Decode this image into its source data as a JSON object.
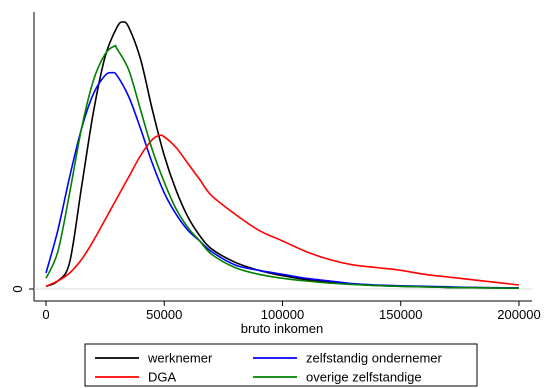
{
  "chart_data": {
    "type": "line",
    "xlabel": "bruto inkomen",
    "ylabel": "",
    "title": "",
    "xlim": [
      0,
      200000
    ],
    "ylim": [
      0,
      1
    ],
    "x_ticks": [
      0,
      50000,
      100000,
      150000,
      200000
    ],
    "x_tick_labels": [
      "0",
      "50000",
      "100000",
      "150000",
      "200000"
    ],
    "y_ticks": [
      0
    ],
    "y_tick_labels": [
      "0"
    ],
    "grid": false,
    "legend_position": "bottom",
    "series": [
      {
        "name": "werknemer",
        "color": "#000000",
        "x": [
          0,
          5000,
          10000,
          15000,
          20000,
          25000,
          30000,
          32500,
          35000,
          40000,
          45000,
          50000,
          55000,
          60000,
          65000,
          70000,
          80000,
          90000,
          100000,
          110000,
          120000,
          130000,
          140000,
          150000,
          160000,
          170000,
          180000,
          190000,
          200000
        ],
        "values": [
          0.01,
          0.03,
          0.1,
          0.38,
          0.66,
          0.87,
          0.98,
          1.0,
          0.98,
          0.86,
          0.67,
          0.5,
          0.37,
          0.27,
          0.2,
          0.15,
          0.1,
          0.07,
          0.05,
          0.035,
          0.025,
          0.018,
          0.013,
          0.01,
          0.008,
          0.006,
          0.005,
          0.004,
          0.003
        ]
      },
      {
        "name": "zelfstandig ondernemer",
        "color": "#0000ff",
        "x": [
          0,
          5000,
          10000,
          15000,
          20000,
          25000,
          28000,
          30000,
          35000,
          40000,
          45000,
          50000,
          55000,
          60000,
          65000,
          70000,
          80000,
          90000,
          100000,
          110000,
          120000,
          130000,
          140000,
          150000,
          160000,
          170000,
          180000,
          190000,
          200000
        ],
        "values": [
          0.06,
          0.22,
          0.42,
          0.6,
          0.73,
          0.8,
          0.81,
          0.8,
          0.72,
          0.6,
          0.47,
          0.36,
          0.28,
          0.22,
          0.18,
          0.14,
          0.09,
          0.07,
          0.055,
          0.04,
          0.03,
          0.02,
          0.015,
          0.012,
          0.01,
          0.008,
          0.006,
          0.005,
          0.004
        ]
      },
      {
        "name": "DGA",
        "color": "#ff0000",
        "x": [
          0,
          5000,
          10000,
          15000,
          20000,
          25000,
          30000,
          35000,
          40000,
          45000,
          48000,
          50000,
          55000,
          60000,
          65000,
          70000,
          80000,
          90000,
          100000,
          110000,
          120000,
          130000,
          140000,
          150000,
          160000,
          170000,
          180000,
          190000,
          200000
        ],
        "values": [
          0.01,
          0.03,
          0.06,
          0.11,
          0.18,
          0.26,
          0.34,
          0.42,
          0.5,
          0.56,
          0.575,
          0.57,
          0.53,
          0.47,
          0.41,
          0.35,
          0.28,
          0.22,
          0.18,
          0.14,
          0.11,
          0.09,
          0.08,
          0.07,
          0.055,
          0.045,
          0.035,
          0.025,
          0.015
        ]
      },
      {
        "name": "overige zelfstandige",
        "color": "#008000",
        "x": [
          0,
          5000,
          10000,
          15000,
          20000,
          25000,
          29000,
          30000,
          35000,
          40000,
          45000,
          50000,
          55000,
          60000,
          65000,
          70000,
          80000,
          90000,
          100000,
          110000,
          120000,
          130000,
          140000,
          150000,
          160000,
          170000,
          180000,
          190000,
          200000
        ],
        "values": [
          0.04,
          0.14,
          0.36,
          0.6,
          0.78,
          0.88,
          0.91,
          0.9,
          0.82,
          0.67,
          0.52,
          0.4,
          0.3,
          0.23,
          0.18,
          0.13,
          0.08,
          0.055,
          0.04,
          0.03,
          0.022,
          0.017,
          0.013,
          0.01,
          0.008,
          0.006,
          0.005,
          0.004,
          0.003
        ]
      }
    ]
  }
}
